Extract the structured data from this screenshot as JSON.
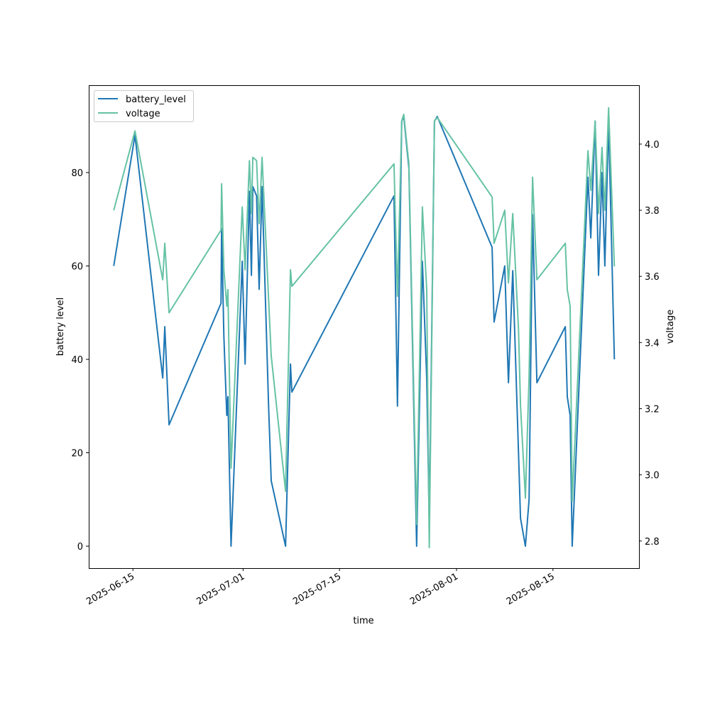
{
  "chart_data": {
    "type": "line",
    "xlabel": "time",
    "ylabel": "battery level",
    "y2label": "voltage",
    "ylim": [
      -4.7,
      98.7
    ],
    "y2lim": [
      2.718,
      4.178
    ],
    "xlim": [
      "2025-06-08T14:00",
      "2025-08-27T12:00"
    ],
    "yticks": [
      0,
      20,
      40,
      60,
      80
    ],
    "y2ticks": [
      2.8,
      3.0,
      3.2,
      3.4,
      3.6,
      3.8,
      4.0
    ],
    "xticks": [
      "2025-06-15",
      "2025-07-01",
      "2025-07-15",
      "2025-08-01",
      "2025-08-15"
    ],
    "legend": {
      "placement": "upper-left",
      "entries": [
        "battery_level",
        "voltage"
      ]
    },
    "colors": {
      "battery_level": "#1f77b4",
      "voltage": "#66c2a5"
    },
    "x": [
      "2025-06-12T05:00",
      "2025-06-15T07:00",
      "2025-06-19T08:00",
      "2025-06-19T15:00",
      "2025-06-20T06:00",
      "2025-06-27T19:00",
      "2025-06-27T21:00",
      "2025-06-28T05:00",
      "2025-06-28T15:00",
      "2025-06-28T19:00",
      "2025-06-29T06:00",
      "2025-06-30T21:00",
      "2025-07-01T07:00",
      "2025-07-01T22:00",
      "2025-07-02T05:00",
      "2025-07-02T10:00",
      "2025-07-02T23:00",
      "2025-07-03T08:00",
      "2025-07-03T18:00",
      "2025-07-04T17:00",
      "2025-07-05T02:00",
      "2025-07-07T04:00",
      "2025-07-07T21:00",
      "2025-07-08T02:00",
      "2025-07-22T22:00",
      "2025-07-23T10:00",
      "2025-07-24T01:00",
      "2025-07-24T08:00",
      "2025-07-25T02:00",
      "2025-07-26T05:00",
      "2025-07-27T01:00",
      "2025-07-27T16:00",
      "2025-07-28T01:00",
      "2025-07-28T19:00",
      "2025-07-29T05:00",
      "2025-08-06T04:00",
      "2025-08-06T11:00",
      "2025-08-08T00:00",
      "2025-08-08T13:00",
      "2025-08-09T04:00",
      "2025-08-10T00:00",
      "2025-08-10T07:00",
      "2025-08-11T00:00",
      "2025-08-11T13:00",
      "2025-08-12T01:00",
      "2025-08-12T16:00",
      "2025-08-16T19:00",
      "2025-08-17T02:00",
      "2025-08-17T12:00",
      "2025-08-17T19:00",
      "2025-08-20T02:00",
      "2025-08-20T12:00",
      "2025-08-21T03:00",
      "2025-08-21T15:00",
      "2025-08-22T03:00",
      "2025-08-22T13:00",
      "2025-08-23T02:00",
      "2025-08-23T22:00"
    ],
    "series": [
      {
        "name": "battery_level",
        "axis": "left",
        "values": [
          60,
          88,
          36,
          47,
          26,
          52,
          68,
          45,
          28,
          32,
          0,
          61,
          39,
          76,
          58,
          77,
          75,
          55,
          77,
          30,
          14,
          0,
          39,
          33,
          75,
          30,
          91,
          92,
          81,
          0,
          61,
          36,
          5,
          91,
          92,
          64,
          48,
          60,
          35,
          59,
          20,
          6,
          0,
          10,
          71,
          35,
          47,
          32,
          28,
          0,
          79,
          66,
          91,
          58,
          80,
          60,
          91,
          40
        ]
      },
      {
        "name": "voltage",
        "axis": "right",
        "values": [
          3.8,
          4.04,
          3.59,
          3.7,
          3.49,
          3.74,
          3.88,
          3.62,
          3.51,
          3.56,
          3.02,
          3.81,
          3.62,
          3.95,
          3.79,
          3.96,
          3.95,
          3.76,
          3.96,
          3.53,
          3.36,
          2.95,
          3.62,
          3.57,
          3.94,
          3.54,
          4.07,
          4.09,
          3.94,
          2.85,
          3.81,
          3.56,
          2.78,
          4.07,
          4.08,
          3.84,
          3.7,
          3.8,
          3.58,
          3.79,
          3.44,
          3.21,
          2.93,
          3.3,
          3.9,
          3.59,
          3.7,
          3.56,
          3.51,
          2.92,
          3.98,
          3.86,
          4.07,
          3.79,
          3.99,
          3.8,
          4.11,
          3.63
        ]
      }
    ]
  }
}
